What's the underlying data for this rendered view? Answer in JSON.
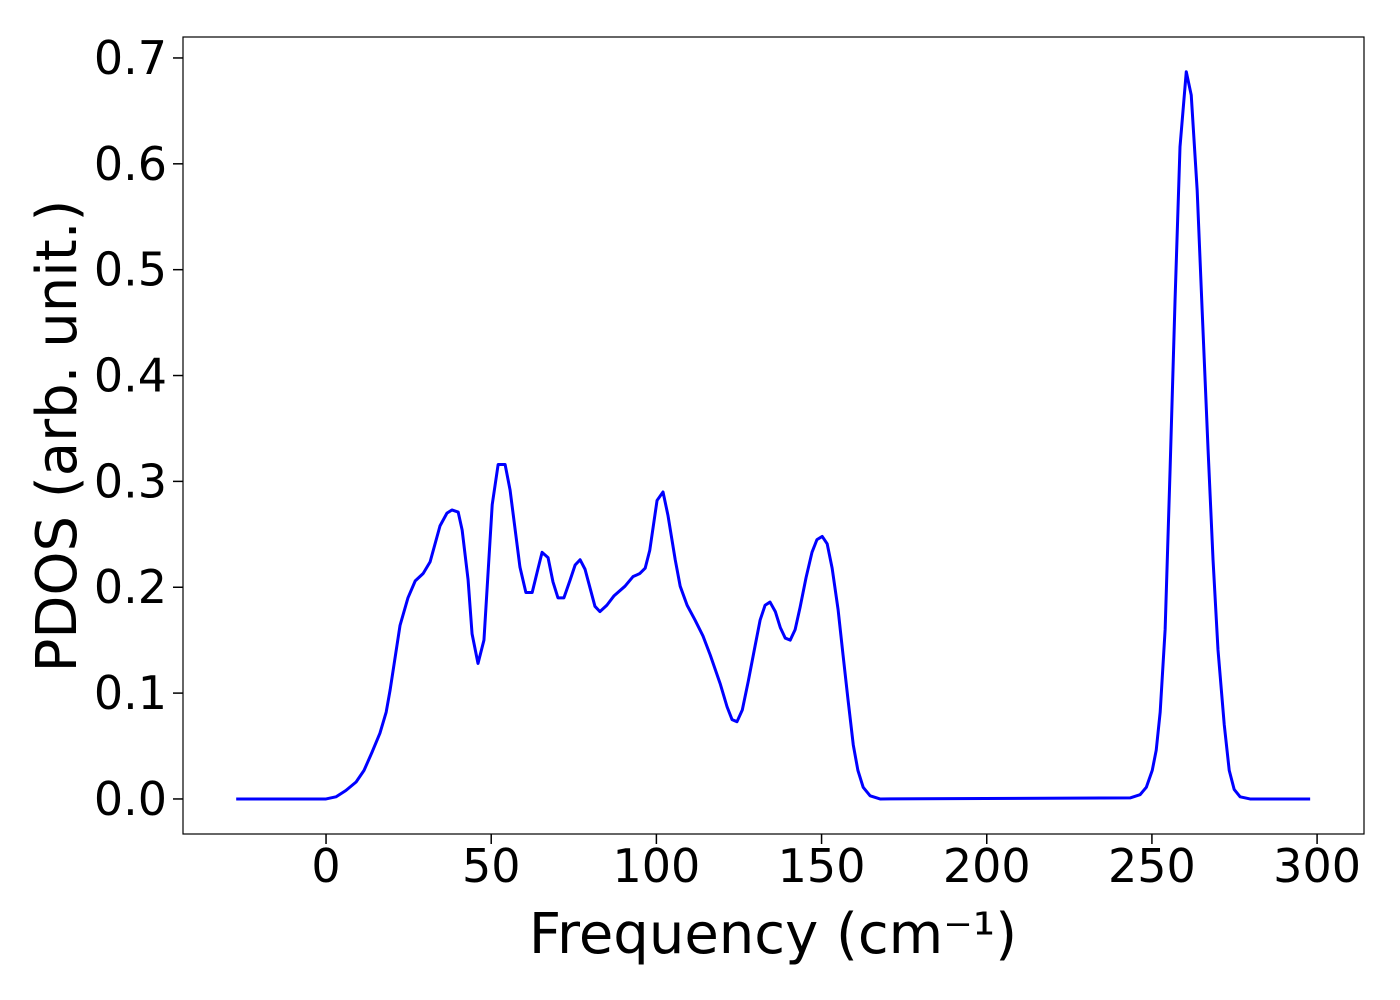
{
  "chart_data": {
    "type": "line",
    "x_label": "Frequency (cm⁻¹)",
    "y_label": "PDOS (arb. unit.)",
    "color": "#0000ff",
    "x": [
      -27.2,
      0,
      3,
      6,
      9.1,
      11.5,
      13.9,
      16.3,
      18.2,
      19.4,
      22.4,
      24.8,
      27,
      29.4,
      31.5,
      34.5,
      36.6,
      38.1,
      40,
      41.2,
      43,
      44.2,
      46,
      47.8,
      50.3,
      52.1,
      54.2,
      55.7,
      58.7,
      60.5,
      62.4,
      64.2,
      65.4,
      67.2,
      68.7,
      70.2,
      72,
      73.9,
      75.4,
      76.9,
      78.4,
      81.4,
      82.9,
      85,
      87.2,
      90.5,
      92.9,
      95,
      96.6,
      98,
      100.2,
      102,
      103.5,
      105.7,
      107.2,
      109.3,
      111.7,
      114.1,
      116.3,
      119.3,
      121.4,
      122.9,
      124.4,
      126,
      127.8,
      129.9,
      131.4,
      132.9,
      134.4,
      136,
      137.5,
      139,
      140.5,
      142,
      143.5,
      145.3,
      147.1,
      148.6,
      150.2,
      151.7,
      153.2,
      155,
      156.5,
      158,
      159.6,
      161,
      162.6,
      164.7,
      167.7,
      243.4,
      246.4,
      248.3,
      250.1,
      251.3,
      252.5,
      254,
      255.5,
      257,
      258.5,
      260.4,
      261.9,
      263.7,
      265.2,
      267,
      268.5,
      270,
      271.9,
      273.4,
      274.9,
      276.7,
      279.7,
      297.9
    ],
    "values": [
      0,
      0,
      0.002,
      0.008,
      0.016,
      0.027,
      0.044,
      0.062,
      0.082,
      0.103,
      0.164,
      0.19,
      0.206,
      0.213,
      0.224,
      0.258,
      0.27,
      0.273,
      0.271,
      0.254,
      0.207,
      0.156,
      0.128,
      0.15,
      0.278,
      0.316,
      0.316,
      0.292,
      0.219,
      0.195,
      0.195,
      0.218,
      0.233,
      0.228,
      0.205,
      0.19,
      0.19,
      0.207,
      0.221,
      0.226,
      0.217,
      0.182,
      0.177,
      0.183,
      0.192,
      0.201,
      0.21,
      0.213,
      0.218,
      0.235,
      0.282,
      0.29,
      0.268,
      0.226,
      0.201,
      0.183,
      0.169,
      0.154,
      0.136,
      0.109,
      0.087,
      0.075,
      0.073,
      0.084,
      0.111,
      0.145,
      0.169,
      0.183,
      0.186,
      0.177,
      0.162,
      0.152,
      0.15,
      0.16,
      0.181,
      0.209,
      0.233,
      0.245,
      0.248,
      0.241,
      0.218,
      0.179,
      0.136,
      0.094,
      0.051,
      0.027,
      0.011,
      0.003,
      0,
      0.001,
      0.004,
      0.011,
      0.027,
      0.046,
      0.082,
      0.16,
      0.311,
      0.471,
      0.616,
      0.687,
      0.665,
      0.575,
      0.462,
      0.33,
      0.226,
      0.141,
      0.07,
      0.027,
      0.009,
      0.002,
      0,
      0
    ],
    "xlim": [
      -43.3,
      314.2
    ],
    "ylim": [
      -0.0331,
      0.7198
    ],
    "xticks": [
      0,
      50,
      100,
      150,
      200,
      250,
      300
    ],
    "yticks": [
      {
        "value": 0,
        "label": "0.0"
      },
      0.1,
      0.2,
      0.3,
      0.4,
      0.5,
      0.6,
      0.7
    ]
  }
}
